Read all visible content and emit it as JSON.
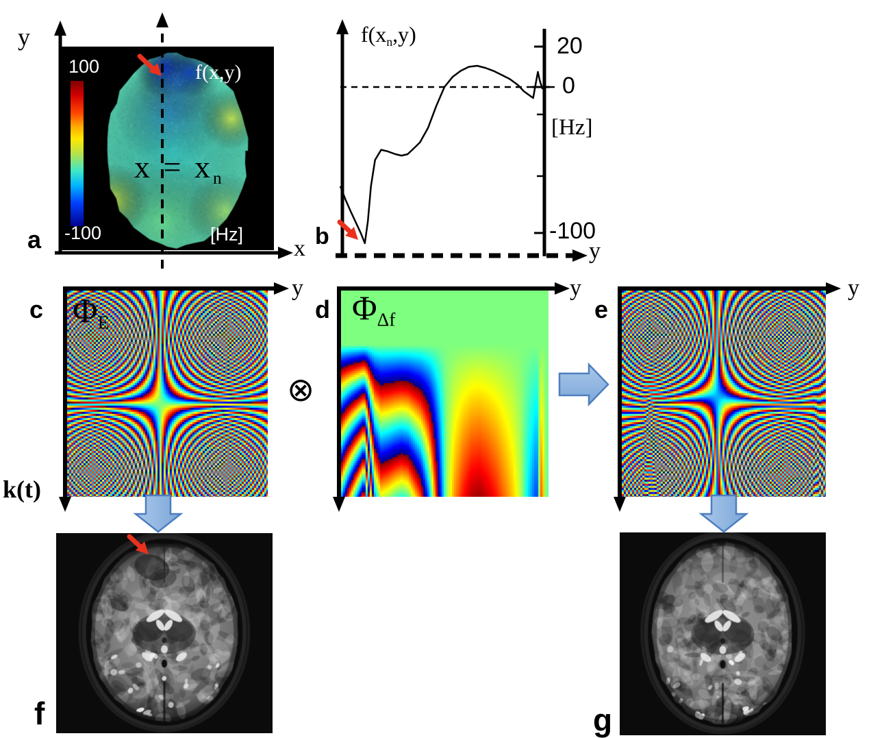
{
  "panels": {
    "a": {
      "letter": "a",
      "map_label": "f(x,y)",
      "units": "[Hz]",
      "colorbar": {
        "max": "100",
        "min": "-100"
      },
      "axis_vertical": "y",
      "axis_horizontal": "x",
      "slice_line": {
        "pre": "x = x",
        "sub": "n"
      }
    },
    "b": {
      "letter": "b",
      "title": {
        "pre": "f(x",
        "sub": "n",
        "post": ",y)"
      },
      "units": "[Hz]",
      "axis_horizontal": "y",
      "ticks": {
        "t20": "20",
        "t0": "0",
        "tm100": "-100"
      }
    },
    "c": {
      "letter": "c",
      "phase_label": {
        "pre": "Φ",
        "sub": "E"
      },
      "axis_horizontal": "y",
      "axis_vertical": "k(t)"
    },
    "d": {
      "letter": "d",
      "phase_label": {
        "pre": "Φ",
        "sub": "Δf"
      },
      "axis_horizontal": "y"
    },
    "e": {
      "letter": "e",
      "axis_horizontal": "y"
    },
    "f": {
      "letter": "f"
    },
    "g": {
      "letter": "g"
    }
  },
  "operators": {
    "times": "⊗"
  },
  "colors": {
    "arrow_red": "#e8321e",
    "arrow_blue_fill_light": "#aac8ea",
    "arrow_blue_fill_dark": "#7ba6d8",
    "arrow_blue_edge": "#4d7ebf",
    "phase_zero_green": "#7fe57f",
    "field_map_max": "#7f0000",
    "field_map_min": "#00008f"
  },
  "chart_data": {
    "type": "line",
    "title": "f(xn,y)",
    "xlabel": "y",
    "ylabel": "[Hz]",
    "yticks": [
      20,
      0,
      -100
    ],
    "ylim": [
      -115,
      25
    ],
    "zero_reference_line": 0,
    "grid": false,
    "points": [
      [
        0,
        -68
      ],
      [
        0.025,
        -77
      ],
      [
        0.05,
        -85
      ],
      [
        0.08,
        -94
      ],
      [
        0.1,
        -100
      ],
      [
        0.12,
        -107
      ],
      [
        0.135,
        -92
      ],
      [
        0.15,
        -68
      ],
      [
        0.17,
        -50
      ],
      [
        0.2,
        -43
      ],
      [
        0.23,
        -44
      ],
      [
        0.27,
        -46
      ],
      [
        0.3,
        -47
      ],
      [
        0.33,
        -46
      ],
      [
        0.36,
        -42
      ],
      [
        0.39,
        -38
      ],
      [
        0.43,
        -28
      ],
      [
        0.47,
        -13
      ],
      [
        0.51,
        0
      ],
      [
        0.55,
        5
      ],
      [
        0.59,
        8
      ],
      [
        0.63,
        10
      ],
      [
        0.67,
        10.5
      ],
      [
        0.71,
        9.5
      ],
      [
        0.75,
        8
      ],
      [
        0.79,
        6
      ],
      [
        0.83,
        4
      ],
      [
        0.87,
        1
      ],
      [
        0.9,
        -3
      ],
      [
        0.93,
        -6
      ],
      [
        0.945,
        -7.5
      ],
      [
        0.958,
        2
      ],
      [
        0.968,
        7.5
      ],
      [
        0.978,
        3
      ],
      [
        0.99,
        -1
      ],
      [
        1.0,
        0
      ]
    ]
  }
}
